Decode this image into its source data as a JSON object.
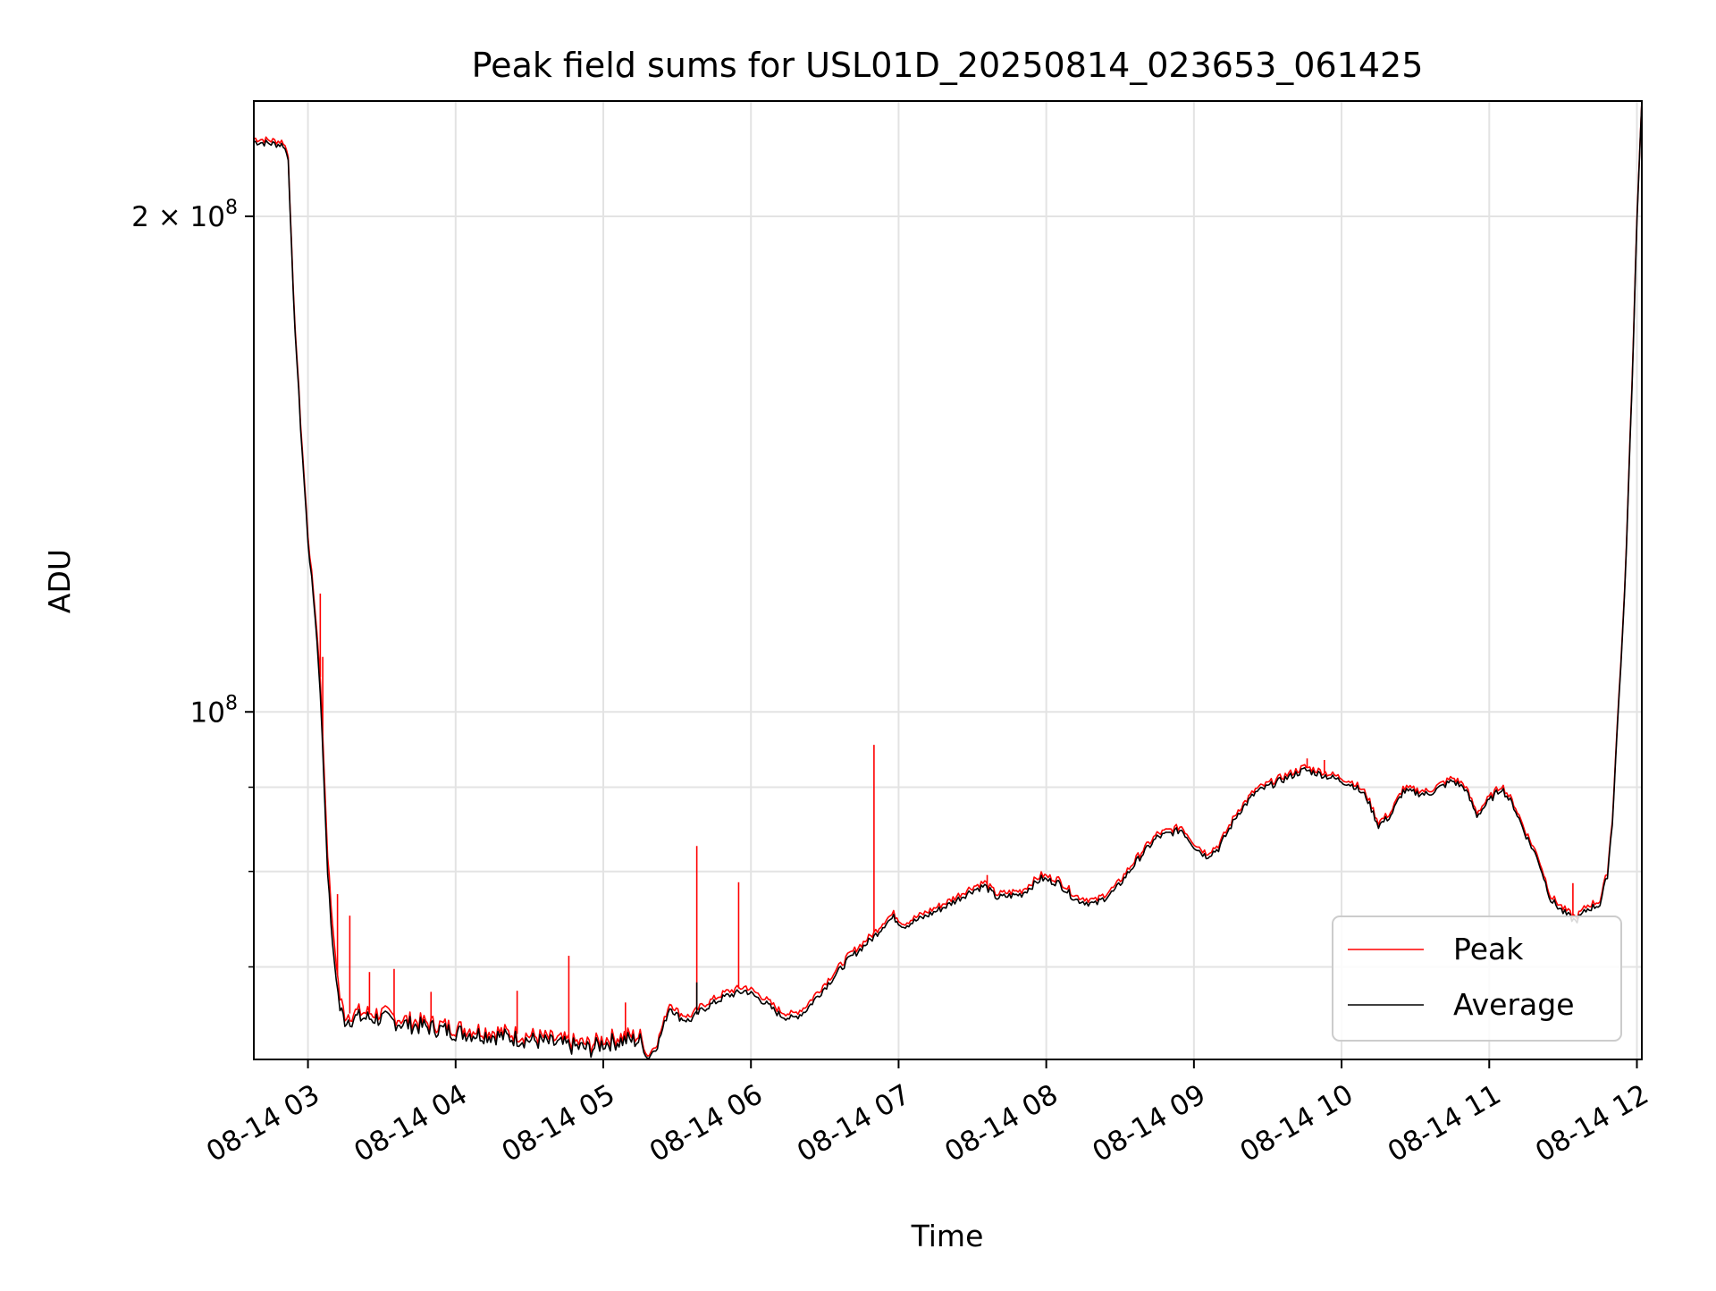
{
  "chart_data": {
    "type": "line",
    "title": "Peak field sums for USL01D_20250814_023653_061425",
    "xlabel": "Time",
    "ylabel": "ADU",
    "yscale": "log",
    "ylim": [
      61500000,
      235000000
    ],
    "xlim": [
      "2025-08-14 02:38",
      "2025-08-14 12:02"
    ],
    "grid": true,
    "legend": "lower-right",
    "x_ticks": [
      {
        "t": "2025-08-14 03:00",
        "label": "08-14 03"
      },
      {
        "t": "2025-08-14 04:00",
        "label": "08-14 04"
      },
      {
        "t": "2025-08-14 05:00",
        "label": "08-14 05"
      },
      {
        "t": "2025-08-14 06:00",
        "label": "08-14 06"
      },
      {
        "t": "2025-08-14 07:00",
        "label": "08-14 07"
      },
      {
        "t": "2025-08-14 08:00",
        "label": "08-14 08"
      },
      {
        "t": "2025-08-14 09:00",
        "label": "08-14 09"
      },
      {
        "t": "2025-08-14 10:00",
        "label": "08-14 10"
      },
      {
        "t": "2025-08-14 11:00",
        "label": "08-14 11"
      },
      {
        "t": "2025-08-14 12:00",
        "label": "08-14 12"
      }
    ],
    "y_major_ticks": [
      {
        "value": 100000000,
        "label_base": "10",
        "label_exp": "8",
        "label_coef": ""
      },
      {
        "value": 200000000,
        "label_base": "10",
        "label_exp": "8",
        "label_coef": "2 × "
      }
    ],
    "y_minor_ticks": [
      70000000,
      80000000,
      90000000
    ],
    "colors": {
      "Peak": "#ff0000",
      "Average": "#000000"
    },
    "series": [
      {
        "name": "Peak",
        "points": [
          [
            "2025-08-14 02:38",
            223000000
          ],
          [
            "2025-08-14 02:50",
            222000000
          ],
          [
            "2025-08-14 02:52",
            218000000
          ],
          [
            "2025-08-14 02:54",
            180000000
          ],
          [
            "2025-08-14 02:57",
            150000000
          ],
          [
            "2025-08-14 03:00",
            128000000
          ],
          [
            "2025-08-14 03:03",
            115000000
          ],
          [
            "2025-08-14 03:05",
            105000000
          ],
          [
            "2025-08-14 03:08",
            82000000
          ],
          [
            "2025-08-14 03:10",
            74000000
          ],
          [
            "2025-08-14 03:13",
            67000000
          ],
          [
            "2025-08-14 03:15",
            65500000
          ],
          [
            "2025-08-14 03:20",
            65700000
          ],
          [
            "2025-08-14 03:30",
            65600000
          ],
          [
            "2025-08-14 03:40",
            65000000
          ],
          [
            "2025-08-14 03:50",
            64700000
          ],
          [
            "2025-08-14 04:00",
            64300000
          ],
          [
            "2025-08-14 04:15",
            64000000
          ],
          [
            "2025-08-14 04:30",
            63600000
          ],
          [
            "2025-08-14 04:45",
            63100000
          ],
          [
            "2025-08-14 04:55",
            62800000
          ],
          [
            "2025-08-14 05:00",
            63300000
          ],
          [
            "2025-08-14 05:10",
            63600000
          ],
          [
            "2025-08-14 05:15",
            63500000
          ],
          [
            "2025-08-14 05:18",
            61800000
          ],
          [
            "2025-08-14 05:22",
            63000000
          ],
          [
            "2025-08-14 05:27",
            66600000
          ],
          [
            "2025-08-14 05:31",
            65600000
          ],
          [
            "2025-08-14 05:35",
            65300000
          ],
          [
            "2025-08-14 05:40",
            66300000
          ],
          [
            "2025-08-14 05:50",
            67600000
          ],
          [
            "2025-08-14 05:58",
            68100000
          ],
          [
            "2025-08-14 06:05",
            67100000
          ],
          [
            "2025-08-14 06:12",
            65800000
          ],
          [
            "2025-08-14 06:17",
            65500000
          ],
          [
            "2025-08-14 06:22",
            66200000
          ],
          [
            "2025-08-14 06:30",
            68400000
          ],
          [
            "2025-08-14 06:40",
            71200000
          ],
          [
            "2025-08-14 06:50",
            73400000
          ],
          [
            "2025-08-14 06:55",
            74900000
          ],
          [
            "2025-08-14 06:58",
            75400000
          ],
          [
            "2025-08-14 07:02",
            74400000
          ],
          [
            "2025-08-14 07:10",
            75400000
          ],
          [
            "2025-08-14 07:20",
            76700000
          ],
          [
            "2025-08-14 07:30",
            78300000
          ],
          [
            "2025-08-14 07:35",
            78800000
          ],
          [
            "2025-08-14 07:40",
            77500000
          ],
          [
            "2025-08-14 07:50",
            77900000
          ],
          [
            "2025-08-14 07:58",
            79600000
          ],
          [
            "2025-08-14 08:05",
            79100000
          ],
          [
            "2025-08-14 08:12",
            77300000
          ],
          [
            "2025-08-14 08:20",
            76800000
          ],
          [
            "2025-08-14 08:28",
            78300000
          ],
          [
            "2025-08-14 08:38",
            82000000
          ],
          [
            "2025-08-14 08:45",
            84300000
          ],
          [
            "2025-08-14 08:55",
            85200000
          ],
          [
            "2025-08-14 09:00",
            83300000
          ],
          [
            "2025-08-14 09:05",
            82100000
          ],
          [
            "2025-08-14 09:10",
            83000000
          ],
          [
            "2025-08-14 09:18",
            87200000
          ],
          [
            "2025-08-14 09:25",
            89700000
          ],
          [
            "2025-08-14 09:35",
            91200000
          ],
          [
            "2025-08-14 09:45",
            92600000
          ],
          [
            "2025-08-14 09:52",
            92000000
          ],
          [
            "2025-08-14 10:00",
            91200000
          ],
          [
            "2025-08-14 10:05",
            90600000
          ],
          [
            "2025-08-14 10:10",
            89200000
          ],
          [
            "2025-08-14 10:15",
            85700000
          ],
          [
            "2025-08-14 10:20",
            86900000
          ],
          [
            "2025-08-14 10:25",
            89900000
          ],
          [
            "2025-08-14 10:35",
            89500000
          ],
          [
            "2025-08-14 10:45",
            91200000
          ],
          [
            "2025-08-14 10:50",
            90300000
          ],
          [
            "2025-08-14 10:55",
            86900000
          ],
          [
            "2025-08-14 11:00",
            88700000
          ],
          [
            "2025-08-14 11:05",
            90300000
          ],
          [
            "2025-08-14 11:10",
            88000000
          ],
          [
            "2025-08-14 11:15",
            84500000
          ],
          [
            "2025-08-14 11:20",
            81600000
          ],
          [
            "2025-08-14 11:25",
            77300000
          ],
          [
            "2025-08-14 11:30",
            76000000
          ],
          [
            "2025-08-14 11:35",
            75000000
          ],
          [
            "2025-08-14 11:40",
            76300000
          ],
          [
            "2025-08-14 11:45",
            76800000
          ],
          [
            "2025-08-14 11:48",
            80000000
          ],
          [
            "2025-08-14 11:50",
            86000000
          ],
          [
            "2025-08-14 11:52",
            98000000
          ],
          [
            "2025-08-14 11:55",
            118000000
          ],
          [
            "2025-08-14 11:58",
            158000000
          ],
          [
            "2025-08-14 12:00",
            200000000
          ],
          [
            "2025-08-14 12:02",
            235000000
          ]
        ],
        "spikes": [
          [
            "2025-08-14 03:05",
            118000000
          ],
          [
            "2025-08-14 03:06",
            108000000
          ],
          [
            "2025-08-14 03:12",
            77500000
          ],
          [
            "2025-08-14 03:17",
            75200000
          ],
          [
            "2025-08-14 03:25",
            69500000
          ],
          [
            "2025-08-14 03:35",
            69800000
          ],
          [
            "2025-08-14 03:50",
            67600000
          ],
          [
            "2025-08-14 04:25",
            67700000
          ],
          [
            "2025-08-14 04:46",
            71100000
          ],
          [
            "2025-08-14 05:09",
            66600000
          ],
          [
            "2025-08-14 05:38",
            82900000
          ],
          [
            "2025-08-14 05:55",
            78800000
          ],
          [
            "2025-08-14 06:50",
            95500000
          ],
          [
            "2025-08-14 07:36",
            79600000
          ],
          [
            "2025-08-14 09:46",
            93700000
          ],
          [
            "2025-08-14 09:53",
            93500000
          ],
          [
            "2025-08-14 11:34",
            78700000
          ]
        ]
      },
      {
        "name": "Average",
        "points": [
          [
            "2025-08-14 02:38",
            222000000
          ],
          [
            "2025-08-14 02:50",
            221000000
          ],
          [
            "2025-08-14 02:52",
            217000000
          ],
          [
            "2025-08-14 02:54",
            179000000
          ],
          [
            "2025-08-14 02:57",
            149000000
          ],
          [
            "2025-08-14 03:00",
            127000000
          ],
          [
            "2025-08-14 03:03",
            114000000
          ],
          [
            "2025-08-14 03:05",
            103000000
          ],
          [
            "2025-08-14 03:08",
            80000000
          ],
          [
            "2025-08-14 03:10",
            72000000
          ],
          [
            "2025-08-14 03:13",
            66000000
          ],
          [
            "2025-08-14 03:15",
            65000000
          ],
          [
            "2025-08-14 03:20",
            65200000
          ],
          [
            "2025-08-14 03:30",
            65100000
          ],
          [
            "2025-08-14 03:40",
            64600000
          ],
          [
            "2025-08-14 03:50",
            64300000
          ],
          [
            "2025-08-14 04:00",
            63900000
          ],
          [
            "2025-08-14 04:15",
            63600000
          ],
          [
            "2025-08-14 04:30",
            63200000
          ],
          [
            "2025-08-14 04:45",
            62700000
          ],
          [
            "2025-08-14 04:55",
            62400000
          ],
          [
            "2025-08-14 05:00",
            62900000
          ],
          [
            "2025-08-14 05:10",
            63200000
          ],
          [
            "2025-08-14 05:15",
            63100000
          ],
          [
            "2025-08-14 05:18",
            61600000
          ],
          [
            "2025-08-14 05:22",
            62700000
          ],
          [
            "2025-08-14 05:27",
            66200000
          ],
          [
            "2025-08-14 05:31",
            65200000
          ],
          [
            "2025-08-14 05:35",
            64900000
          ],
          [
            "2025-08-14 05:40",
            65900000
          ],
          [
            "2025-08-14 05:50",
            67200000
          ],
          [
            "2025-08-14 05:58",
            67700000
          ],
          [
            "2025-08-14 06:05",
            66700000
          ],
          [
            "2025-08-14 06:12",
            65400000
          ],
          [
            "2025-08-14 06:17",
            65100000
          ],
          [
            "2025-08-14 06:22",
            65800000
          ],
          [
            "2025-08-14 06:30",
            68000000
          ],
          [
            "2025-08-14 06:40",
            70800000
          ],
          [
            "2025-08-14 06:50",
            73000000
          ],
          [
            "2025-08-14 06:55",
            74500000
          ],
          [
            "2025-08-14 06:58",
            75000000
          ],
          [
            "2025-08-14 07:02",
            74100000
          ],
          [
            "2025-08-14 07:10",
            75000000
          ],
          [
            "2025-08-14 07:20",
            76300000
          ],
          [
            "2025-08-14 07:30",
            77900000
          ],
          [
            "2025-08-14 07:35",
            78400000
          ],
          [
            "2025-08-14 07:40",
            77100000
          ],
          [
            "2025-08-14 07:50",
            77500000
          ],
          [
            "2025-08-14 07:58",
            79200000
          ],
          [
            "2025-08-14 08:05",
            78700000
          ],
          [
            "2025-08-14 08:12",
            76900000
          ],
          [
            "2025-08-14 08:20",
            76400000
          ],
          [
            "2025-08-14 08:28",
            77900000
          ],
          [
            "2025-08-14 08:38",
            81600000
          ],
          [
            "2025-08-14 08:45",
            83900000
          ],
          [
            "2025-08-14 08:55",
            84800000
          ],
          [
            "2025-08-14 09:00",
            82900000
          ],
          [
            "2025-08-14 09:05",
            81700000
          ],
          [
            "2025-08-14 09:10",
            82600000
          ],
          [
            "2025-08-14 09:18",
            86800000
          ],
          [
            "2025-08-14 09:25",
            89300000
          ],
          [
            "2025-08-14 09:35",
            90800000
          ],
          [
            "2025-08-14 09:45",
            92200000
          ],
          [
            "2025-08-14 09:52",
            91600000
          ],
          [
            "2025-08-14 10:00",
            90800000
          ],
          [
            "2025-08-14 10:05",
            90200000
          ],
          [
            "2025-08-14 10:10",
            88800000
          ],
          [
            "2025-08-14 10:15",
            85300000
          ],
          [
            "2025-08-14 10:20",
            86500000
          ],
          [
            "2025-08-14 10:25",
            89500000
          ],
          [
            "2025-08-14 10:35",
            89100000
          ],
          [
            "2025-08-14 10:45",
            90800000
          ],
          [
            "2025-08-14 10:50",
            89900000
          ],
          [
            "2025-08-14 10:55",
            86500000
          ],
          [
            "2025-08-14 11:00",
            88300000
          ],
          [
            "2025-08-14 11:05",
            89900000
          ],
          [
            "2025-08-14 11:10",
            87600000
          ],
          [
            "2025-08-14 11:15",
            84100000
          ],
          [
            "2025-08-14 11:20",
            81200000
          ],
          [
            "2025-08-14 11:25",
            76900000
          ],
          [
            "2025-08-14 11:30",
            75600000
          ],
          [
            "2025-08-14 11:35",
            74600000
          ],
          [
            "2025-08-14 11:40",
            75900000
          ],
          [
            "2025-08-14 11:45",
            76400000
          ],
          [
            "2025-08-14 11:48",
            79600000
          ],
          [
            "2025-08-14 11:50",
            85600000
          ],
          [
            "2025-08-14 11:52",
            97500000
          ],
          [
            "2025-08-14 11:55",
            117500000
          ],
          [
            "2025-08-14 11:58",
            157000000
          ],
          [
            "2025-08-14 12:00",
            199000000
          ],
          [
            "2025-08-14 12:02",
            235000000
          ]
        ],
        "spikes": [
          [
            "2025-08-14 05:38",
            68500000
          ]
        ]
      }
    ]
  }
}
